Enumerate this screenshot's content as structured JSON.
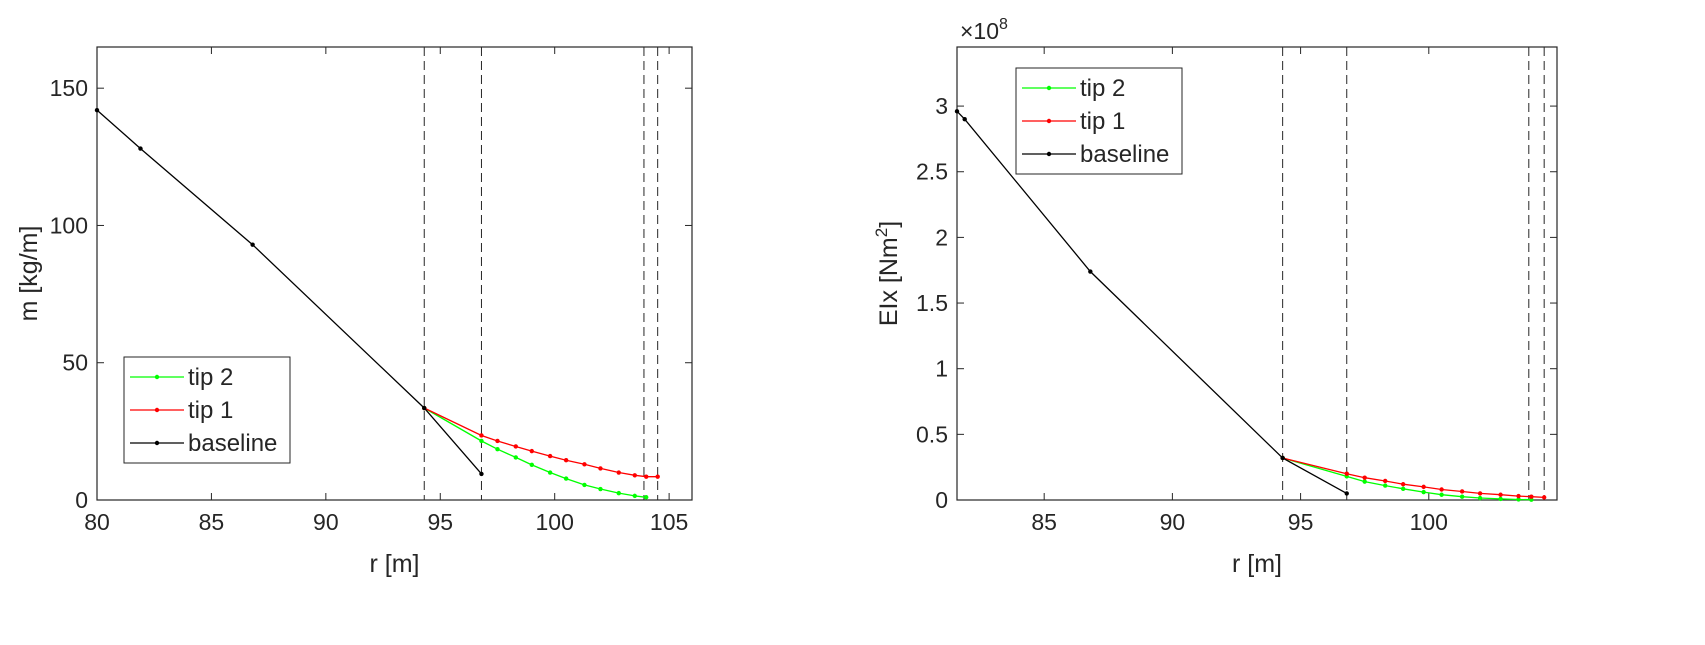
{
  "chart_data": [
    {
      "type": "line",
      "xlabel": "r [m]",
      "ylabel": "m [kg/m]",
      "xlim": [
        80,
        106
      ],
      "ylim": [
        0,
        165
      ],
      "xticks": [
        80,
        85,
        90,
        95,
        100,
        105
      ],
      "yticks": [
        0,
        50,
        100,
        150
      ],
      "grid": false,
      "legend_position": "lower-left",
      "exponent_label": "",
      "vlines": [
        94.3,
        96.8,
        103.9,
        104.5
      ],
      "series": [
        {
          "name": "tip 2",
          "color": "#00ff00",
          "x": [
            94.3,
            96.8,
            97.5,
            98.3,
            99.0,
            99.8,
            100.5,
            101.3,
            102.0,
            102.8,
            103.5,
            104.0
          ],
          "y": [
            33.5,
            21.5,
            18.5,
            15.5,
            12.8,
            10.0,
            7.8,
            5.5,
            4.0,
            2.5,
            1.5,
            1.0
          ]
        },
        {
          "name": "tip 1",
          "color": "#ff0000",
          "x": [
            94.3,
            96.8,
            97.5,
            98.3,
            99.0,
            99.8,
            100.5,
            101.3,
            102.0,
            102.8,
            103.5,
            104.0,
            104.5
          ],
          "y": [
            33.5,
            23.5,
            21.5,
            19.5,
            17.8,
            16.0,
            14.5,
            13.0,
            11.5,
            10.0,
            9.0,
            8.5,
            8.5
          ]
        },
        {
          "name": "baseline",
          "color": "#000000",
          "x": [
            80,
            81.9,
            86.8,
            94.3,
            96.8
          ],
          "y": [
            142,
            128,
            93,
            33.5,
            9.5
          ]
        }
      ]
    },
    {
      "type": "line",
      "xlabel": "r [m]",
      "ylabel": "EIx [Nm",
      "ylabel_sup": "2",
      "ylabel_end": "]",
      "xlim": [
        81.6,
        105
      ],
      "ylim": [
        0,
        3.45
      ],
      "xticks": [
        85,
        90,
        95,
        100
      ],
      "yticks": [
        0,
        0.5,
        1,
        1.5,
        2,
        2.5,
        3
      ],
      "ytick_labels": [
        "0",
        "0.5",
        "1",
        "1.5",
        "2",
        "2.5",
        "3"
      ],
      "grid": false,
      "legend_position": "top-left",
      "exponent_prefix": "×10",
      "exponent_power": "8",
      "vlines": [
        94.3,
        96.8,
        103.9,
        104.5
      ],
      "series": [
        {
          "name": "tip 2",
          "color": "#00ff00",
          "x": [
            94.3,
            96.8,
            97.5,
            98.3,
            99.0,
            99.8,
            100.5,
            101.3,
            102.0,
            102.8,
            103.5,
            104.0
          ],
          "y": [
            0.32,
            0.18,
            0.14,
            0.11,
            0.085,
            0.06,
            0.04,
            0.025,
            0.015,
            0.008,
            0.004,
            0.002
          ]
        },
        {
          "name": "tip 1",
          "color": "#ff0000",
          "x": [
            94.3,
            96.8,
            97.5,
            98.3,
            99.0,
            99.8,
            100.5,
            101.3,
            102.0,
            102.8,
            103.5,
            104.0,
            104.5
          ],
          "y": [
            0.32,
            0.2,
            0.17,
            0.145,
            0.12,
            0.1,
            0.08,
            0.065,
            0.05,
            0.04,
            0.03,
            0.025,
            0.02
          ]
        },
        {
          "name": "baseline",
          "color": "#000000",
          "x": [
            81.6,
            81.9,
            86.8,
            94.3,
            96.8
          ],
          "y": [
            2.96,
            2.9,
            1.74,
            0.32,
            0.05
          ]
        }
      ]
    }
  ]
}
